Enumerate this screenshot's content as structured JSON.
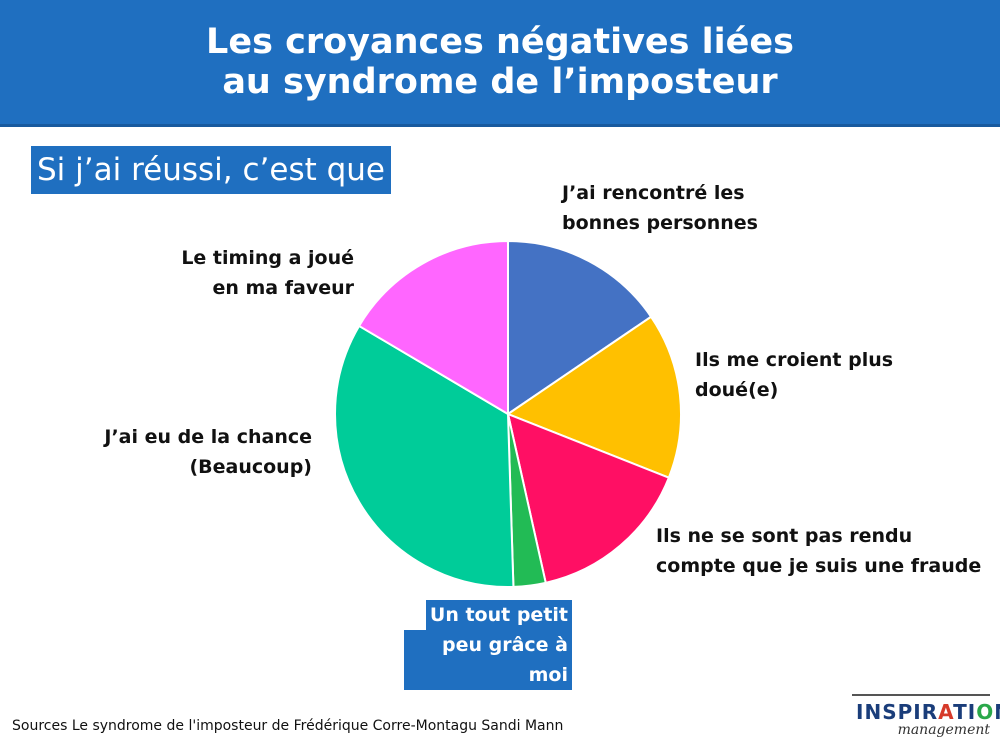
{
  "header": {
    "title_line1": "Les croyances négatives liées",
    "title_line2": "au syndrome de l’imposteur"
  },
  "subtitle": "Si j’ai réussi, c’est que",
  "chart_data": {
    "type": "pie",
    "slices": [
      {
        "label_lines": [
          "J’ai rencontré les",
          "bonnes personnes"
        ],
        "value": 15.5,
        "color": "#4472c4"
      },
      {
        "label_lines": [
          "Ils me croient plus",
          "doué(e)"
        ],
        "value": 15.5,
        "color": "#ffc000"
      },
      {
        "label_lines": [
          "Ils ne se sont pas rendu",
          "compte que je suis une fraude"
        ],
        "value": 15.5,
        "color": "#ff0f64"
      },
      {
        "label_lines": [
          "Un tout petit",
          "peu grâce à moi"
        ],
        "value": 3,
        "color": "#22bb55"
      },
      {
        "label_lines": [
          "J’ai eu de la chance",
          "(Beaucoup)"
        ],
        "value": 34,
        "color": "#00cc99"
      },
      {
        "label_lines": [
          "Le timing a joué",
          "en ma faveur"
        ],
        "value": 16.5,
        "color": "#ff66ff"
      }
    ]
  },
  "source": "Sources  Le syndrome de l'imposteur de Frédérique Corre-Montagu Sandi Mann",
  "logo": {
    "word": "INSPIRATIONS",
    "sub": "management",
    "letter_colors": [
      "#1a3d7a",
      "#1a3d7a",
      "#1a3d7a",
      "#1a3d7a",
      "#1a3d7a",
      "#1a3d7a",
      "#d63a2a",
      "#1a3d7a",
      "#1a3d7a",
      "#2aa84a",
      "#1a3d7a",
      "#1a3d7a"
    ]
  }
}
